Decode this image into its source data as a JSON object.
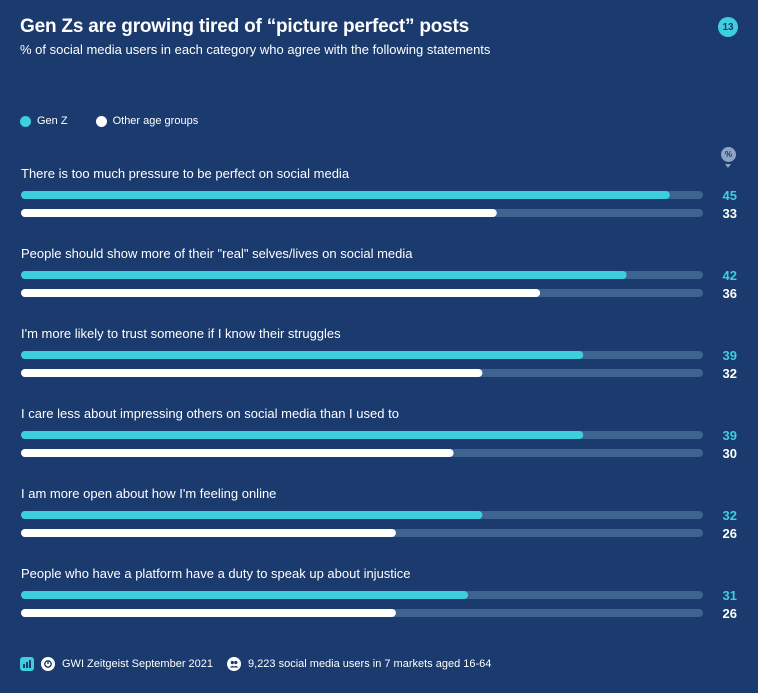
{
  "header": {
    "title": "Gen Zs are growing tired of “picture perfect” posts",
    "subtitle": "% of social media users in each category who agree with the following statements",
    "page_number": "13"
  },
  "unit_icon": "%",
  "footer": {
    "source": "GWI Zeitgeist September 2021",
    "sample": "9,223 social media users in 7 markets aged 16-64",
    "icons": [
      "chart-icon",
      "source-icon",
      "users-icon"
    ]
  },
  "colors": {
    "background": "#1b3a6e",
    "genz": "#3ecfdf",
    "other": "#ffffff",
    "track": "#3d6391",
    "genz_value": "#3ecfdf",
    "other_value": "#ffffff"
  },
  "chart_data": {
    "type": "bar",
    "orientation": "horizontal",
    "title": "Gen Zs are growing tired of “picture perfect” posts",
    "subtitle": "% of social media users in each category who agree with the following statements",
    "xlim": [
      0,
      50
    ],
    "legend": "top-left",
    "categories": [
      "There is too much pressure to be perfect on social media",
      "People should show more of their \"real\" selves/lives on social media",
      "I'm more likely to trust someone if I know their struggles",
      "I care less about impressing others on social media than I used to",
      "I am more open about how I'm feeling online",
      "People who have a platform have a duty to speak up about injustice"
    ],
    "series": [
      {
        "name": "Gen Z",
        "values": [
          45,
          42,
          39,
          39,
          32,
          31
        ]
      },
      {
        "name": "Other age groups",
        "values": [
          33,
          36,
          32,
          30,
          26,
          26
        ]
      }
    ]
  }
}
